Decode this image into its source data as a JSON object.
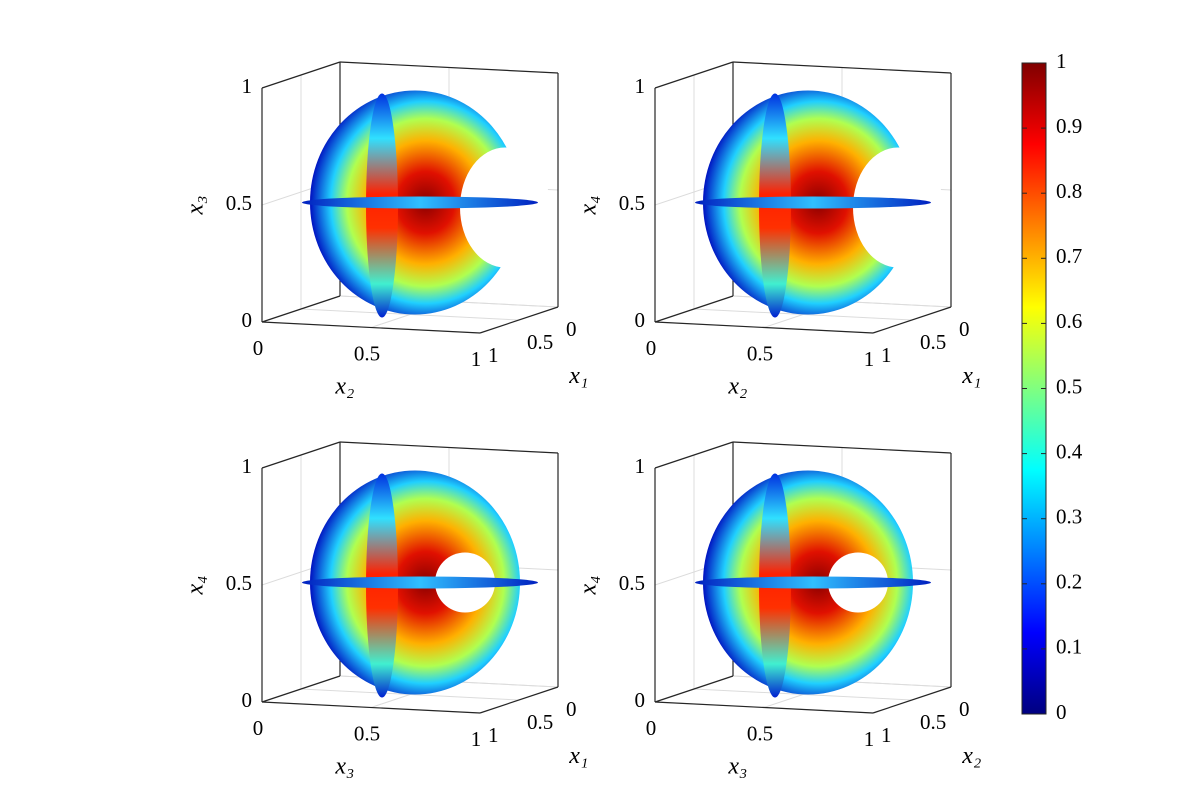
{
  "chart_data": [
    {
      "type": "slice3d",
      "xlabel": "x₂",
      "ylabel": "x₁",
      "zlabel": "x₃",
      "xlim": [
        0,
        1
      ],
      "ylim": [
        0,
        1
      ],
      "zlim": [
        0,
        1
      ],
      "xticks": [
        0,
        0.5,
        1
      ],
      "yticks": [
        0,
        0.5,
        1
      ],
      "zticks": [
        0,
        0.5,
        1
      ],
      "grid": true,
      "y_reversed": true
    },
    {
      "type": "slice3d",
      "xlabel": "x₂",
      "ylabel": "x₁",
      "zlabel": "x₄",
      "xlim": [
        0,
        1
      ],
      "ylim": [
        0,
        1
      ],
      "zlim": [
        0,
        1
      ],
      "xticks": [
        0,
        0.5,
        1
      ],
      "yticks": [
        0,
        0.5,
        1
      ],
      "zticks": [
        0,
        0.5,
        1
      ],
      "grid": true,
      "y_reversed": true
    },
    {
      "type": "slice3d",
      "xlabel": "x₃",
      "ylabel": "x₁",
      "zlabel": "x₄",
      "xlim": [
        0,
        1
      ],
      "ylim": [
        0,
        1
      ],
      "zlim": [
        0,
        1
      ],
      "xticks": [
        0,
        0.5,
        1
      ],
      "yticks": [
        0,
        0.5,
        1
      ],
      "zticks": [
        0,
        0.5,
        1
      ],
      "grid": true,
      "y_reversed": true
    },
    {
      "type": "slice3d",
      "xlabel": "x₃",
      "ylabel": "x₂",
      "zlabel": "x₄",
      "xlim": [
        0,
        1
      ],
      "ylim": [
        0,
        1
      ],
      "zlim": [
        0,
        1
      ],
      "xticks": [
        0,
        0.5,
        1
      ],
      "yticks": [
        0,
        0.5,
        1
      ],
      "zticks": [
        0,
        0.5,
        1
      ],
      "grid": true,
      "y_reversed": true
    }
  ],
  "colorbar": {
    "colormap": "jet",
    "lim": [
      0,
      1
    ],
    "ticks": [
      0,
      0.1,
      0.2,
      0.3,
      0.4,
      0.5,
      0.6,
      0.7,
      0.8,
      0.9,
      1
    ]
  }
}
